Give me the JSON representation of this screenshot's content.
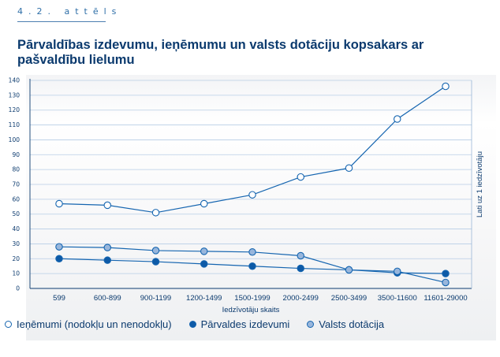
{
  "figure_label": "4.2. attēls",
  "chart_data": {
    "type": "line",
    "title": "Pārvaldības izdevumu, ieņēmumu un valsts dotāciju kopsakars ar pašvaldību lielumu",
    "xlabel": "Iedzīvotāju skaits",
    "ylabel": "Lati uz 1 iedzīvotāju",
    "ylim": [
      0,
      140
    ],
    "yticks": [
      0,
      10,
      20,
      30,
      40,
      50,
      60,
      70,
      80,
      90,
      100,
      110,
      120,
      130,
      140
    ],
    "grid": "horizontal",
    "legend_position": "bottom",
    "categories": [
      "599",
      "600-899",
      "900-1199",
      "1200-1499",
      "1500-1999",
      "2000-2499",
      "2500-3499",
      "3500-11600",
      "11601-29000"
    ],
    "series": [
      {
        "name": "Ieņēmumi (nodokļu un nenodokļu)",
        "marker": "open-circle",
        "color": "#1565b0",
        "fill": "#ffffff",
        "values": [
          57,
          56,
          51,
          57,
          63,
          75,
          81,
          114,
          136
        ]
      },
      {
        "name": "Pārvaldes izdevumi",
        "marker": "filled-circle",
        "color": "#1565b0",
        "fill": "#0d5aa7",
        "values": [
          20,
          19,
          18,
          16.5,
          15,
          13.5,
          12.5,
          10.5,
          10
        ]
      },
      {
        "name": "Valsts dotācija",
        "marker": "shaded-circle",
        "color": "#1565b0",
        "fill": "#98b6dc",
        "values": [
          28,
          27.5,
          25.5,
          25,
          24.5,
          22,
          12.5,
          11.5,
          4
        ]
      }
    ]
  }
}
